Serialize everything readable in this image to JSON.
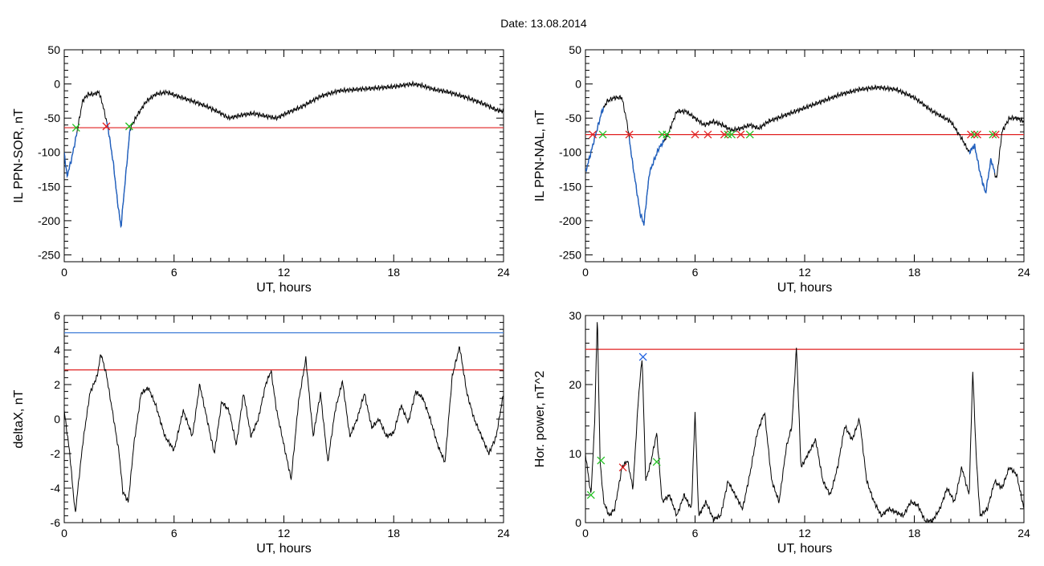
{
  "page": {
    "title": "Date:  13.08.2014"
  },
  "colors": {
    "trace": "#000000",
    "highlight": "#1f5fbf",
    "threshold_red": "#e02020",
    "threshold_blue": "#3a7ad6",
    "marker_red": "#e02020",
    "marker_green": "#22c022",
    "marker_blue": "#2060e0"
  },
  "chart_data": [
    {
      "id": "il-ppn-sor",
      "type": "line",
      "xlabel": "UT, hours",
      "ylabel": "IL PPN-SOR, nT",
      "xlim": [
        0,
        24
      ],
      "ylim": [
        -260,
        50
      ],
      "xticks": [
        0,
        6,
        12,
        18,
        24
      ],
      "yticks": [
        -250,
        -200,
        -150,
        -100,
        -50,
        0,
        50
      ],
      "threshold": {
        "value": -64,
        "color": "#e02020"
      },
      "series": [
        {
          "values_x": [
            0,
            0.15,
            0.4,
            0.7,
            1.0,
            1.3,
            1.6,
            1.9,
            2.1,
            2.4,
            2.7,
            2.9,
            3.1,
            3.3,
            3.6,
            4.0,
            4.5,
            5.0,
            5.6,
            6.2,
            7.0,
            7.8,
            8.5,
            9.0,
            9.6,
            10.3,
            11.0,
            11.6,
            12.2,
            13.0,
            14.0,
            15.0,
            16.0,
            17.0,
            18.0,
            19.0,
            19.5,
            20.2,
            21.0,
            22.0,
            23.0,
            23.6,
            24.0
          ],
          "values_y": [
            -100,
            -135,
            -110,
            -70,
            -25,
            -15,
            -15,
            -12,
            -30,
            -65,
            -120,
            -170,
            -210,
            -150,
            -65,
            -45,
            -25,
            -15,
            -12,
            -18,
            -25,
            -33,
            -42,
            -50,
            -46,
            -43,
            -47,
            -50,
            -42,
            -33,
            -18,
            -10,
            -8,
            -6,
            -4,
            0,
            -2,
            -8,
            -12,
            -20,
            -30,
            -38,
            -40
          ],
          "highlight_ranges": [
            [
              0,
              0.7
            ],
            [
              2.3,
              3.6
            ]
          ]
        }
      ],
      "markers": [
        {
          "x": 0.65,
          "y": -64,
          "color": "#22c022"
        },
        {
          "x": 2.3,
          "y": -62,
          "color": "#e02020"
        },
        {
          "x": 3.55,
          "y": -62,
          "color": "#22c022"
        }
      ]
    },
    {
      "id": "il-ppn-nal",
      "type": "line",
      "xlabel": "UT, hours",
      "ylabel": "IL PPN-NAL, nT",
      "xlim": [
        0,
        24
      ],
      "ylim": [
        -260,
        50
      ],
      "xticks": [
        0,
        6,
        12,
        18,
        24
      ],
      "yticks": [
        -250,
        -200,
        -150,
        -100,
        -50,
        0,
        50
      ],
      "threshold": {
        "value": -74,
        "color": "#e02020"
      },
      "series": [
        {
          "values_x": [
            0,
            0.2,
            0.5,
            0.9,
            1.2,
            1.6,
            2.0,
            2.3,
            2.6,
            3.0,
            3.2,
            3.5,
            4.0,
            4.5,
            5.0,
            5.5,
            6.0,
            6.5,
            7.0,
            7.5,
            8.0,
            8.5,
            9.0,
            9.5,
            10.0,
            11.0,
            12.0,
            13.0,
            14.0,
            15.0,
            16.0,
            17.0,
            18.0,
            19.0,
            20.0,
            20.6,
            21.0,
            21.3,
            21.6,
            21.9,
            22.2,
            22.5,
            22.8,
            23.2,
            23.6,
            24.0
          ],
          "values_y": [
            -130,
            -110,
            -80,
            -40,
            -25,
            -20,
            -20,
            -60,
            -120,
            -190,
            -205,
            -130,
            -95,
            -75,
            -40,
            -40,
            -50,
            -60,
            -55,
            -60,
            -68,
            -65,
            -60,
            -65,
            -55,
            -45,
            -35,
            -25,
            -15,
            -8,
            -5,
            -8,
            -20,
            -40,
            -55,
            -80,
            -100,
            -90,
            -130,
            -160,
            -110,
            -140,
            -70,
            -50,
            -50,
            -55
          ],
          "highlight_ranges": [
            [
              0,
              1.0
            ],
            [
              2.4,
              4.3
            ],
            [
              21.0,
              22.4
            ]
          ]
        }
      ],
      "markers": [
        {
          "x": 0.4,
          "y": -74,
          "color": "#e02020"
        },
        {
          "x": 0.95,
          "y": -74,
          "color": "#22c022"
        },
        {
          "x": 2.4,
          "y": -74,
          "color": "#e02020"
        },
        {
          "x": 4.2,
          "y": -74,
          "color": "#22c022"
        },
        {
          "x": 4.45,
          "y": -74,
          "color": "#22c022"
        },
        {
          "x": 6.0,
          "y": -74,
          "color": "#e02020"
        },
        {
          "x": 6.7,
          "y": -74,
          "color": "#e02020"
        },
        {
          "x": 7.6,
          "y": -74,
          "color": "#e02020"
        },
        {
          "x": 7.8,
          "y": -74,
          "color": "#22c022"
        },
        {
          "x": 8.0,
          "y": -74,
          "color": "#22c022"
        },
        {
          "x": 8.5,
          "y": -74,
          "color": "#e02020"
        },
        {
          "x": 9.0,
          "y": -74,
          "color": "#22c022"
        },
        {
          "x": 21.1,
          "y": -74,
          "color": "#e02020"
        },
        {
          "x": 21.3,
          "y": -74,
          "color": "#22c022"
        },
        {
          "x": 21.45,
          "y": -74,
          "color": "#e02020"
        },
        {
          "x": 22.3,
          "y": -74,
          "color": "#22c022"
        },
        {
          "x": 22.45,
          "y": -74,
          "color": "#e02020"
        }
      ]
    },
    {
      "id": "deltax",
      "type": "line",
      "xlabel": "UT, hours",
      "ylabel": "deltaX, nT",
      "xlim": [
        0,
        24
      ],
      "ylim": [
        -6,
        6
      ],
      "xticks": [
        0,
        6,
        12,
        18,
        24
      ],
      "yticks": [
        -6,
        -4,
        -2,
        0,
        2,
        4,
        6
      ],
      "thresholds": [
        {
          "value": 5.0,
          "color": "#3a7ad6"
        },
        {
          "value": 2.85,
          "color": "#e02020"
        }
      ],
      "series": [
        {
          "values_x": [
            0,
            0.3,
            0.6,
            1.0,
            1.4,
            1.8,
            2.0,
            2.3,
            2.7,
            3.0,
            3.2,
            3.5,
            3.8,
            4.2,
            4.6,
            5.0,
            5.5,
            6.0,
            6.5,
            7.0,
            7.4,
            7.8,
            8.2,
            8.6,
            9.0,
            9.4,
            9.8,
            10.2,
            10.6,
            11.0,
            11.3,
            11.6,
            12.0,
            12.4,
            12.8,
            13.2,
            13.6,
            14.0,
            14.4,
            14.8,
            15.2,
            15.6,
            16.0,
            16.4,
            16.8,
            17.2,
            17.6,
            18.0,
            18.4,
            18.8,
            19.2,
            19.6,
            20.0,
            20.4,
            20.8,
            21.2,
            21.6,
            22.0,
            22.4,
            22.8,
            23.2,
            23.6,
            24.0
          ],
          "values_y": [
            0.5,
            -2.0,
            -5.5,
            -1.5,
            1.5,
            2.5,
            3.8,
            2.6,
            0.0,
            -2.0,
            -4.2,
            -4.8,
            -1.5,
            1.5,
            1.8,
            0.8,
            -1.0,
            -1.8,
            0.5,
            -1.0,
            2.0,
            0.0,
            -2.0,
            1.0,
            0.5,
            -1.5,
            1.5,
            -1.0,
            0.0,
            2.0,
            2.8,
            0.5,
            -1.5,
            -3.5,
            1.0,
            3.5,
            -1.0,
            1.5,
            -2.5,
            0.5,
            2.2,
            -1.0,
            0.0,
            1.5,
            -0.5,
            0.0,
            -1.0,
            -0.8,
            0.8,
            -0.2,
            1.6,
            1.2,
            0.0,
            -1.5,
            -2.5,
            2.5,
            4.2,
            1.5,
            0.0,
            -1.0,
            -2.0,
            -1.0,
            1.5
          ]
        }
      ]
    },
    {
      "id": "hor-power",
      "type": "line",
      "xlabel": "UT, hours",
      "ylabel": "Hor. power, nT^2",
      "xlim": [
        0,
        24
      ],
      "ylim": [
        0,
        30
      ],
      "xticks": [
        0,
        6,
        12,
        18,
        24
      ],
      "yticks": [
        0,
        10,
        20,
        30
      ],
      "threshold": {
        "value": 25.1,
        "color": "#e02020"
      },
      "series": [
        {
          "values_x": [
            0,
            0.3,
            0.5,
            0.65,
            0.8,
            1.0,
            1.3,
            1.6,
            2.0,
            2.3,
            2.6,
            2.9,
            3.1,
            3.3,
            3.6,
            3.9,
            4.2,
            4.6,
            5.0,
            5.4,
            5.8,
            6.0,
            6.2,
            6.6,
            7.0,
            7.4,
            7.8,
            8.2,
            8.6,
            9.0,
            9.4,
            9.8,
            10.2,
            10.6,
            11.0,
            11.3,
            11.55,
            11.8,
            12.2,
            12.6,
            13.0,
            13.4,
            13.8,
            14.2,
            14.6,
            15.0,
            15.4,
            15.8,
            16.2,
            16.6,
            17.0,
            17.4,
            17.8,
            18.2,
            18.6,
            19.0,
            19.4,
            19.8,
            20.2,
            20.6,
            21.0,
            21.2,
            21.4,
            21.6,
            22.0,
            22.4,
            22.8,
            23.2,
            23.6,
            24.0
          ],
          "values_y": [
            10.0,
            4.0,
            14.0,
            30.0,
            9.0,
            3.0,
            1.0,
            2.0,
            8.0,
            9.0,
            5.0,
            18.0,
            24.0,
            6.0,
            9.0,
            13.0,
            3.0,
            4.0,
            1.0,
            4.0,
            2.0,
            16.0,
            1.0,
            3.0,
            0.5,
            1.0,
            6.0,
            4.0,
            2.0,
            7.0,
            13.0,
            16.0,
            6.0,
            3.0,
            11.0,
            14.0,
            25.5,
            8.0,
            10.0,
            12.0,
            6.0,
            4.0,
            8.0,
            14.0,
            12.0,
            15.0,
            6.0,
            3.0,
            1.0,
            2.0,
            1.5,
            1.0,
            3.0,
            2.5,
            0.2,
            0.3,
            2.0,
            5.0,
            3.0,
            8.0,
            4.0,
            22.0,
            9.0,
            1.0,
            2.0,
            6.0,
            5.0,
            8.0,
            7.0,
            2.0
          ]
        }
      ],
      "markers": [
        {
          "x": 0.3,
          "y": 4.0,
          "color": "#22c022"
        },
        {
          "x": 0.85,
          "y": 9.0,
          "color": "#22c022"
        },
        {
          "x": 2.05,
          "y": 8.0,
          "color": "#e02020"
        },
        {
          "x": 3.15,
          "y": 24.0,
          "color": "#2060e0"
        },
        {
          "x": 3.9,
          "y": 8.8,
          "color": "#22c022"
        }
      ]
    }
  ]
}
